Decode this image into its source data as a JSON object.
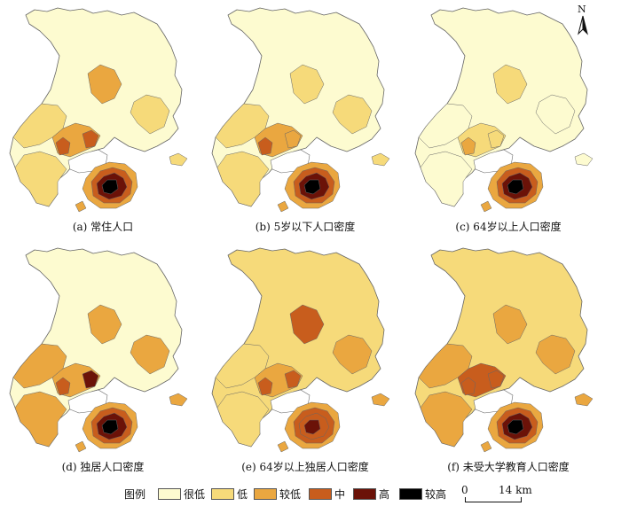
{
  "colors": {
    "very_low": "#fdfbd0",
    "low": "#f6da7a",
    "lower": "#eaa740",
    "medium": "#c85d1d",
    "high": "#6b1208",
    "higher": "#000000",
    "water": "#ffffff",
    "outline": "#666666"
  },
  "panels": [
    {
      "caption": "(a) 常住人口",
      "levels": {
        "north": "very_low",
        "center": "lower",
        "west": "low",
        "southwest": "low",
        "middle_south": "lower",
        "east": "low",
        "hot_a": "medium",
        "hot_b": "medium",
        "island_outer": "lower",
        "island_mid": "medium",
        "island_inner": "high",
        "island_core": "higher"
      }
    },
    {
      "caption": "(b) 5岁以下人口密度",
      "levels": {
        "north": "very_low",
        "center": "low",
        "west": "low",
        "southwest": "low",
        "middle_south": "lower",
        "east": "low",
        "hot_a": "medium",
        "hot_b": "lower",
        "island_outer": "lower",
        "island_mid": "medium",
        "island_inner": "high",
        "island_core": "higher"
      }
    },
    {
      "caption": "(c) 64岁以上人口密度",
      "levels": {
        "north": "very_low",
        "center": "low",
        "west": "very_low",
        "southwest": "very_low",
        "middle_south": "low",
        "east": "very_low",
        "hot_a": "lower",
        "hot_b": "low",
        "island_outer": "lower",
        "island_mid": "medium",
        "island_inner": "high",
        "island_core": "higher"
      }
    },
    {
      "caption": "(d) 独居人口密度",
      "levels": {
        "north": "very_low",
        "center": "lower",
        "west": "lower",
        "southwest": "lower",
        "middle_south": "lower",
        "east": "lower",
        "hot_a": "medium",
        "hot_b": "high",
        "island_outer": "lower",
        "island_mid": "medium",
        "island_inner": "high",
        "island_core": "higher"
      }
    },
    {
      "caption": "(e) 64岁以上独居人口密度",
      "levels": {
        "north": "low",
        "center": "medium",
        "west": "low",
        "southwest": "low",
        "middle_south": "lower",
        "east": "lower",
        "hot_a": "medium",
        "hot_b": "medium",
        "island_outer": "lower",
        "island_mid": "medium",
        "island_inner": "medium",
        "island_core": "high"
      }
    },
    {
      "caption": "(f) 未受大学教育人口密度",
      "levels": {
        "north": "low",
        "center": "lower",
        "west": "lower",
        "southwest": "lower",
        "middle_south": "medium",
        "east": "lower",
        "hot_a": "medium",
        "hot_b": "medium",
        "island_outer": "lower",
        "island_mid": "medium",
        "island_inner": "high",
        "island_core": "higher"
      }
    }
  ],
  "legend": {
    "title": "图例",
    "items": [
      {
        "key": "very_low",
        "label": "很低"
      },
      {
        "key": "low",
        "label": "低"
      },
      {
        "key": "lower",
        "label": "较低"
      },
      {
        "key": "medium",
        "label": "中"
      },
      {
        "key": "high",
        "label": "高"
      },
      {
        "key": "higher",
        "label": "较高"
      }
    ]
  },
  "north_arrow": {
    "label": "N"
  },
  "scale_bar": {
    "zero": "0",
    "distance": "14 km"
  }
}
